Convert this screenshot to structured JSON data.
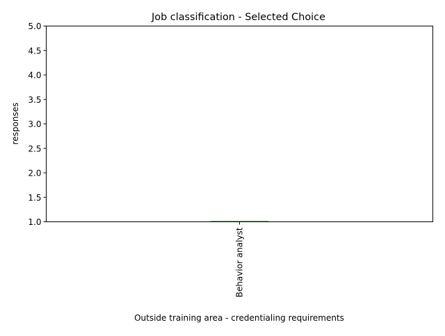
{
  "chart_data": {
    "type": "bar",
    "title": "Job classification - Selected Choice",
    "xlabel": "Outside training area - credentialing requirements",
    "ylabel": "responses",
    "categories": [
      "Behavior analyst"
    ],
    "values": [
      1
    ],
    "ylim": [
      1.0,
      5.0
    ],
    "yticks": [
      "1.0",
      "1.5",
      "2.0",
      "2.5",
      "3.0",
      "3.5",
      "4.0",
      "4.5",
      "5.0"
    ],
    "bar_color": "#2ca02c",
    "grid": false,
    "legend": "none"
  }
}
